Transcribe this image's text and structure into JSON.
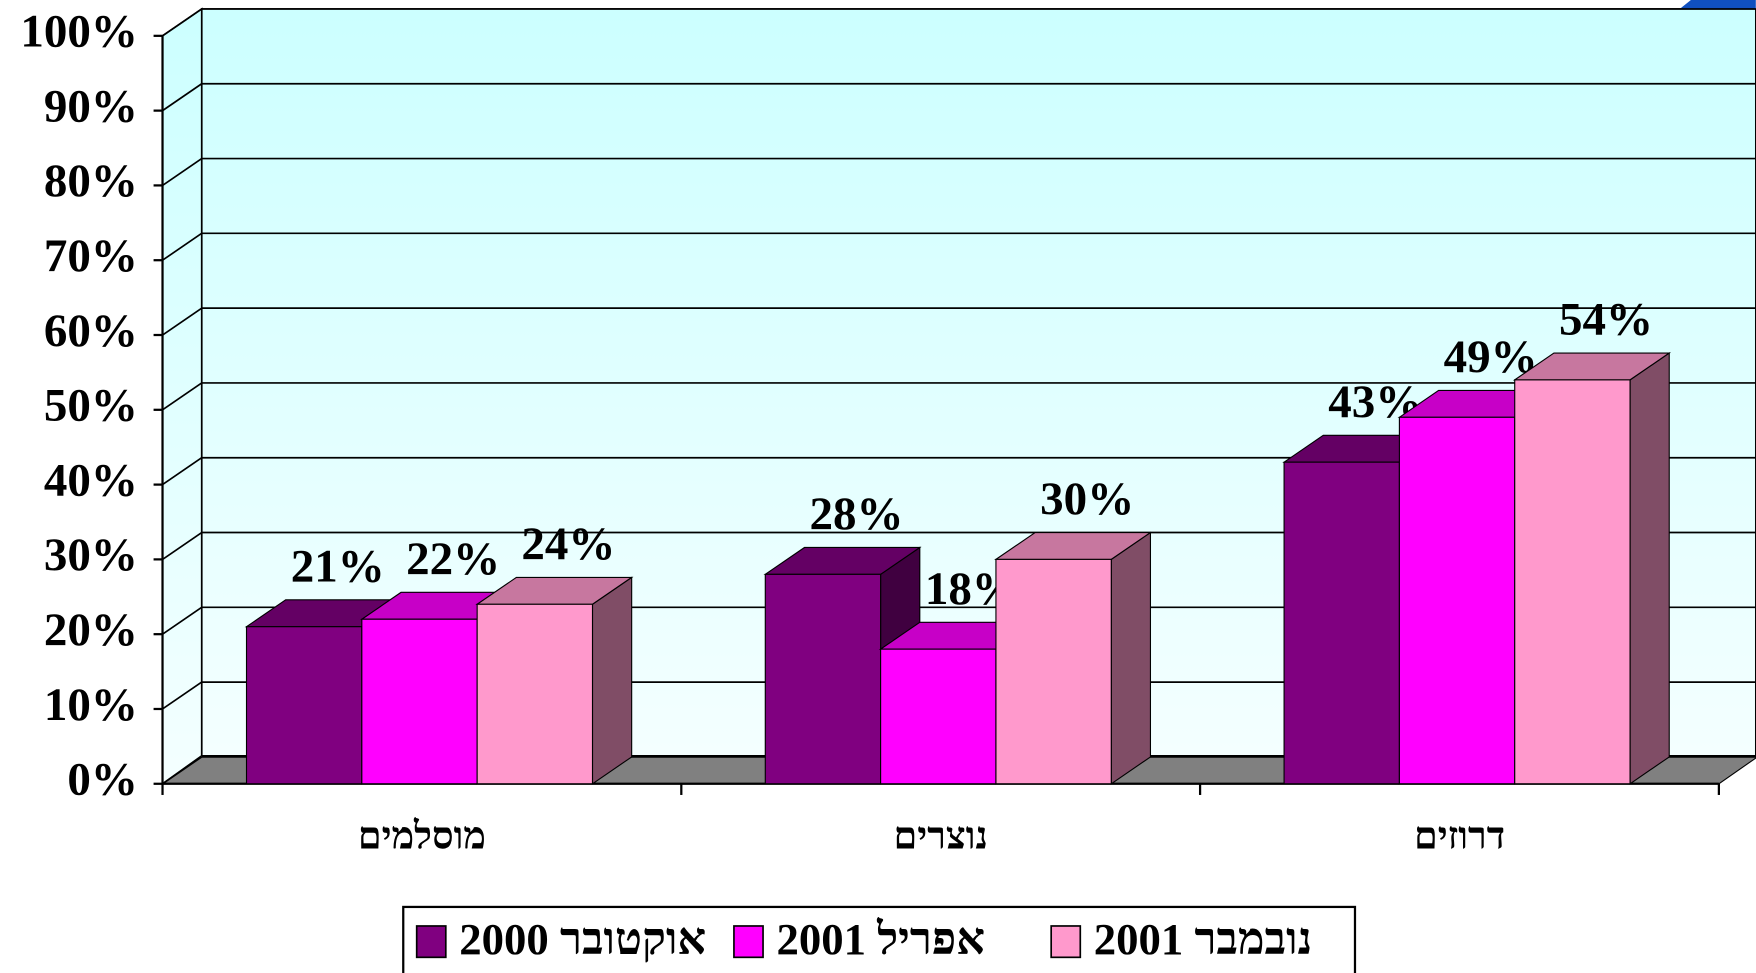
{
  "chart_data": {
    "type": "bar3d",
    "categories": [
      "מוסלמים",
      "נוצרים",
      "דרוזים"
    ],
    "series": [
      {
        "name": "אוקטובר 2000",
        "color": "#800080",
        "values": [
          21,
          28,
          43
        ],
        "value_labels": [
          "21%",
          "28%",
          "43%"
        ]
      },
      {
        "name": "אפריל 2001",
        "color": "#ff00ff",
        "values": [
          22,
          18,
          49
        ],
        "value_labels": [
          "22%",
          "18%",
          "49%"
        ]
      },
      {
        "name": "נובמבר 2001",
        "color": "#ff99cc",
        "values": [
          24,
          30,
          54
        ],
        "value_labels": [
          "24%",
          "30%",
          "54%"
        ]
      }
    ],
    "ylim": [
      0,
      100
    ],
    "yticks": [
      {
        "value": 0,
        "label": "0%"
      },
      {
        "value": 10,
        "label": "10%"
      },
      {
        "value": 20,
        "label": "20%"
      },
      {
        "value": 30,
        "label": "30%"
      },
      {
        "value": 40,
        "label": "40%"
      },
      {
        "value": 50,
        "label": "50%"
      },
      {
        "value": 60,
        "label": "60%"
      },
      {
        "value": 70,
        "label": "70%"
      },
      {
        "value": 80,
        "label": "80%"
      },
      {
        "value": 90,
        "label": "90%"
      },
      {
        "value": 100,
        "label": "100%"
      }
    ],
    "grid": true,
    "legend": "bottom"
  }
}
